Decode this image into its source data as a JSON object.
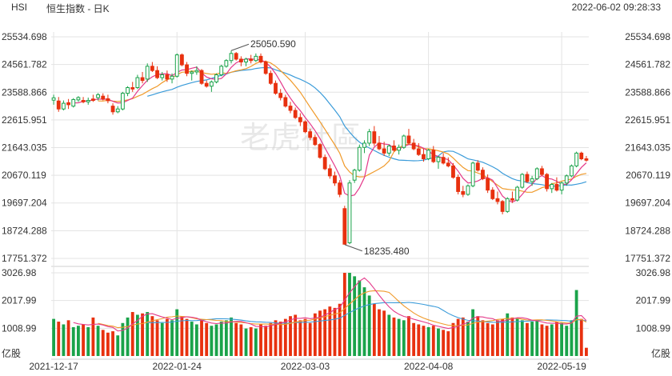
{
  "header": {
    "symbol": "HSI",
    "name": "恒生指数 - 日K",
    "datetime": "2022-06-02 09:28:33"
  },
  "watermark": "老虎社區",
  "colors": {
    "up": "#1aa34a",
    "down": "#e8310f",
    "ma5": "#e4398a",
    "ma10": "#f09a2a",
    "ma20": "#3a9bd9",
    "grid": "#e3e3e3",
    "text": "#333333"
  },
  "chart_data": {
    "type": "candlestick",
    "price_axis": {
      "ticks": [
        "25534.698",
        "24561.782",
        "23588.866",
        "22615.951",
        "21643.035",
        "20670.119",
        "19697.204",
        "18724.288",
        "17751.372"
      ],
      "range": [
        17751.372,
        25534.698
      ]
    },
    "volume_axis": {
      "ticks": [
        "3026.98",
        "2017.99",
        "1008.99",
        "亿股"
      ],
      "range": [
        0,
        3026.98
      ]
    },
    "x_labels": [
      "2021-12-17",
      "2022-01-24",
      "2022-03-03",
      "2022-04-08",
      "2022-05-19"
    ],
    "x_label_index": [
      0,
      25,
      51,
      76,
      103
    ],
    "annotations": [
      {
        "text": "25050.590",
        "index": 36,
        "price": 25050.59
      },
      {
        "text": "18235.480",
        "index": 59,
        "price": 18235.48
      }
    ],
    "candles": [
      [
        23310,
        23500,
        23150,
        23390,
        1350
      ],
      [
        23280,
        23420,
        22900,
        23000,
        1250
      ],
      [
        23000,
        23300,
        22950,
        23200,
        1150
      ],
      [
        23220,
        23350,
        23000,
        23150,
        1300
      ],
      [
        23100,
        23380,
        23050,
        23330,
        1050
      ],
      [
        23320,
        23450,
        23250,
        23400,
        1100
      ],
      [
        23300,
        23420,
        23200,
        23250,
        1150
      ],
      [
        23250,
        23400,
        23150,
        23300,
        1050
      ],
      [
        23350,
        23500,
        23250,
        23300,
        1400
      ],
      [
        23400,
        23560,
        23300,
        23500,
        1100
      ],
      [
        23450,
        23550,
        23300,
        23350,
        950
      ],
      [
        23360,
        23500,
        23200,
        23290,
        850
      ],
      [
        23100,
        23200,
        22800,
        22900,
        900
      ],
      [
        22900,
        23100,
        22850,
        23000,
        750
      ],
      [
        23000,
        23600,
        22950,
        23550,
        1200
      ],
      [
        23550,
        23800,
        23450,
        23750,
        1400
      ],
      [
        23750,
        23950,
        23600,
        23700,
        1600
      ],
      [
        23750,
        24200,
        23700,
        24100,
        1500
      ],
      [
        24100,
        24300,
        23900,
        24000,
        1550
      ],
      [
        24050,
        24600,
        23950,
        24500,
        1600
      ],
      [
        24500,
        24650,
        24300,
        24350,
        1450
      ],
      [
        24350,
        24500,
        24050,
        24100,
        1300
      ],
      [
        24100,
        24300,
        24000,
        24200,
        1200
      ],
      [
        24200,
        24350,
        23950,
        24050,
        1350
      ],
      [
        24050,
        24250,
        23900,
        24150,
        1300
      ],
      [
        24150,
        24950,
        24100,
        24900,
        1700
      ],
      [
        24900,
        24950,
        24500,
        24550,
        1450
      ],
      [
        24550,
        24650,
        24150,
        24250,
        1350
      ],
      [
        24250,
        24350,
        24000,
        24300,
        1250
      ],
      [
        24300,
        24500,
        24200,
        24350,
        1150
      ],
      [
        24350,
        24400,
        23850,
        23900,
        1300
      ],
      [
        23900,
        24000,
        23750,
        23800,
        1200
      ],
      [
        23800,
        24000,
        23600,
        23950,
        1100
      ],
      [
        23950,
        24250,
        23900,
        24200,
        1150
      ],
      [
        24200,
        24550,
        24150,
        24500,
        1250
      ],
      [
        24500,
        24750,
        24450,
        24700,
        1300
      ],
      [
        24700,
        25050,
        24600,
        24950,
        1400
      ],
      [
        24950,
        25000,
        24700,
        24750,
        1200
      ],
      [
        24750,
        24850,
        24500,
        24650,
        1150
      ],
      [
        24650,
        24800,
        24500,
        24750,
        1000
      ],
      [
        24750,
        24900,
        24600,
        24700,
        1050
      ],
      [
        24700,
        24950,
        24650,
        24850,
        1000
      ],
      [
        24850,
        24950,
        24600,
        24650,
        1150
      ],
      [
        24650,
        24700,
        24200,
        24250,
        1100
      ],
      [
        24250,
        24350,
        23850,
        23900,
        1200
      ],
      [
        23900,
        24000,
        23500,
        23550,
        1300
      ],
      [
        23550,
        23700,
        23300,
        23400,
        1250
      ],
      [
        23400,
        23500,
        23050,
        23100,
        1350
      ],
      [
        23100,
        23250,
        22850,
        22950,
        1450
      ],
      [
        22950,
        23050,
        22650,
        22700,
        1500
      ],
      [
        22700,
        22850,
        22400,
        22550,
        1300
      ],
      [
        22550,
        22600,
        22150,
        22200,
        1350
      ],
      [
        22200,
        22300,
        21900,
        22000,
        1200
      ],
      [
        22000,
        22100,
        21700,
        21750,
        1550
      ],
      [
        21750,
        21800,
        21250,
        21300,
        1650
      ],
      [
        21300,
        21400,
        20850,
        20900,
        1700
      ],
      [
        20900,
        21050,
        20550,
        20650,
        1800
      ],
      [
        20650,
        20800,
        20300,
        20400,
        1750
      ],
      [
        20400,
        20500,
        19900,
        20000,
        1900
      ],
      [
        19500,
        19600,
        18235,
        18250,
        3026
      ],
      [
        18300,
        20500,
        18250,
        20400,
        3026
      ],
      [
        20500,
        20900,
        20400,
        20850,
        2900
      ],
      [
        20850,
        21750,
        20800,
        21650,
        2750
      ],
      [
        21650,
        21900,
        21450,
        21800,
        2500
      ],
      [
        21800,
        22300,
        21700,
        22200,
        2200
      ],
      [
        22200,
        22400,
        21700,
        21800,
        1900
      ],
      [
        21800,
        22050,
        21550,
        21600,
        1700
      ],
      [
        21600,
        21850,
        21350,
        21450,
        1650
      ],
      [
        21450,
        21750,
        21350,
        21700,
        1500
      ],
      [
        21700,
        21900,
        21500,
        21550,
        1400
      ],
      [
        21550,
        21750,
        21400,
        21650,
        1350
      ],
      [
        21650,
        22100,
        21600,
        22050,
        1300
      ],
      [
        22050,
        22300,
        21750,
        21800,
        1450
      ],
      [
        21800,
        21950,
        21550,
        21600,
        1200
      ],
      [
        21600,
        21800,
        21350,
        21400,
        1150
      ],
      [
        21400,
        21600,
        21150,
        21250,
        1100
      ],
      [
        21250,
        21600,
        21200,
        21550,
        1050
      ],
      [
        21550,
        21700,
        21100,
        21150,
        1100
      ],
      [
        21150,
        21350,
        20900,
        21300,
        1000
      ],
      [
        21300,
        21450,
        21050,
        21100,
        950
      ],
      [
        21100,
        21300,
        20950,
        21000,
        900
      ],
      [
        21000,
        21100,
        20550,
        20600,
        1200
      ],
      [
        20600,
        20700,
        20000,
        20100,
        1350
      ],
      [
        20100,
        20300,
        19900,
        20000,
        1400
      ],
      [
        20000,
        20350,
        19950,
        20300,
        1250
      ],
      [
        20300,
        21150,
        20250,
        21100,
        1700
      ],
      [
        21100,
        21200,
        20800,
        20850,
        1450
      ],
      [
        20850,
        20950,
        20500,
        20550,
        1300
      ],
      [
        20550,
        20700,
        20050,
        20150,
        1200
      ],
      [
        20150,
        20250,
        19800,
        19850,
        1150
      ],
      [
        19850,
        20100,
        19650,
        19750,
        1300
      ],
      [
        19750,
        19800,
        19300,
        19400,
        1350
      ],
      [
        19400,
        19900,
        19350,
        19850,
        1550
      ],
      [
        19850,
        20100,
        19700,
        19800,
        1400
      ],
      [
        19800,
        20300,
        19750,
        20250,
        1350
      ],
      [
        20250,
        20750,
        20200,
        20700,
        1300
      ],
      [
        20700,
        20800,
        20400,
        20450,
        1200
      ],
      [
        20450,
        20650,
        20300,
        20550,
        1250
      ],
      [
        20550,
        20950,
        20500,
        20900,
        1300
      ],
      [
        20900,
        21000,
        20650,
        20700,
        1150
      ],
      [
        20700,
        20750,
        20100,
        20200,
        1100
      ],
      [
        20200,
        20400,
        20050,
        20350,
        1150
      ],
      [
        20350,
        20600,
        20100,
        20150,
        1250
      ],
      [
        20150,
        20450,
        20000,
        20400,
        1200
      ],
      [
        20400,
        20700,
        20300,
        20650,
        1100
      ],
      [
        20650,
        21050,
        20600,
        21000,
        1300
      ],
      [
        21000,
        21500,
        20950,
        21450,
        2400
      ],
      [
        21450,
        21500,
        21200,
        21250,
        1350
      ],
      [
        21250,
        21350,
        21150,
        21200,
        300
      ]
    ]
  }
}
